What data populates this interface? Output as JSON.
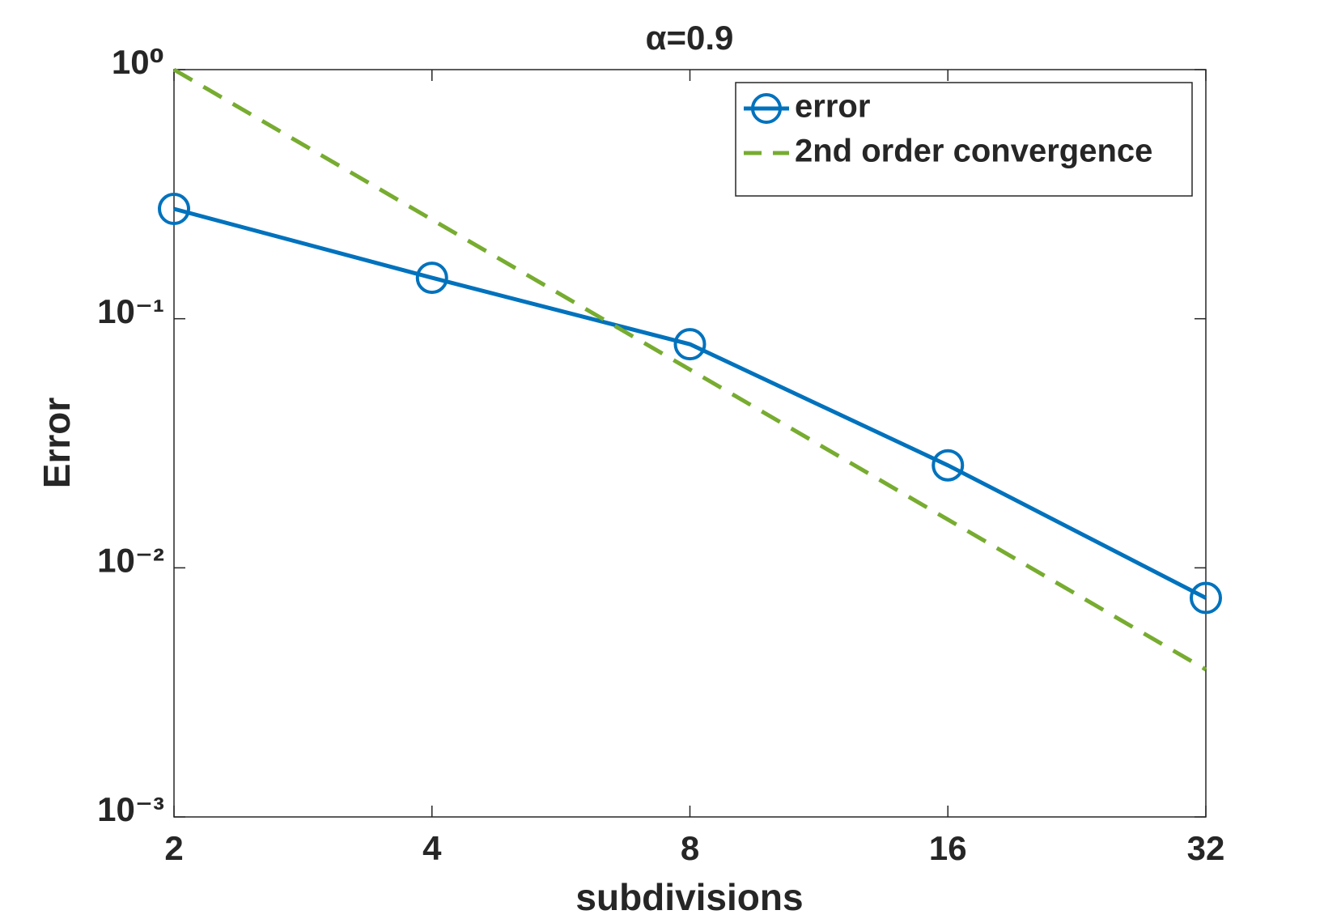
{
  "chart_data": {
    "type": "line",
    "title": "α=0.9",
    "x_label": "subdivisions",
    "y_label": "Error",
    "x": [
      2,
      4,
      8,
      16,
      32
    ],
    "series": [
      {
        "name": "error",
        "color": "#0072BD",
        "marker": "circle",
        "dash": "solid",
        "values": [
          0.276,
          0.146,
          0.079,
          0.0258,
          0.00757
        ]
      },
      {
        "name": "2nd order convergence",
        "color": "#77AC30",
        "marker": "none",
        "dash": "dashed",
        "values": [
          1,
          0.25,
          0.0625,
          0.015625,
          0.00390625
        ]
      }
    ],
    "xlim": [
      2,
      32
    ],
    "xticks": [
      2,
      4,
      8,
      16,
      32
    ],
    "xscale": "log",
    "ylim": [
      0.001,
      1
    ],
    "yticks": [
      {
        "value": 0.001,
        "label": "10⁻³"
      },
      {
        "value": 0.01,
        "label": "10⁻²"
      },
      {
        "value": 0.1,
        "label": "10⁻¹"
      },
      {
        "value": 1,
        "label": "10⁰"
      }
    ],
    "yscale": "log",
    "grid": false,
    "legend": "northeast"
  }
}
